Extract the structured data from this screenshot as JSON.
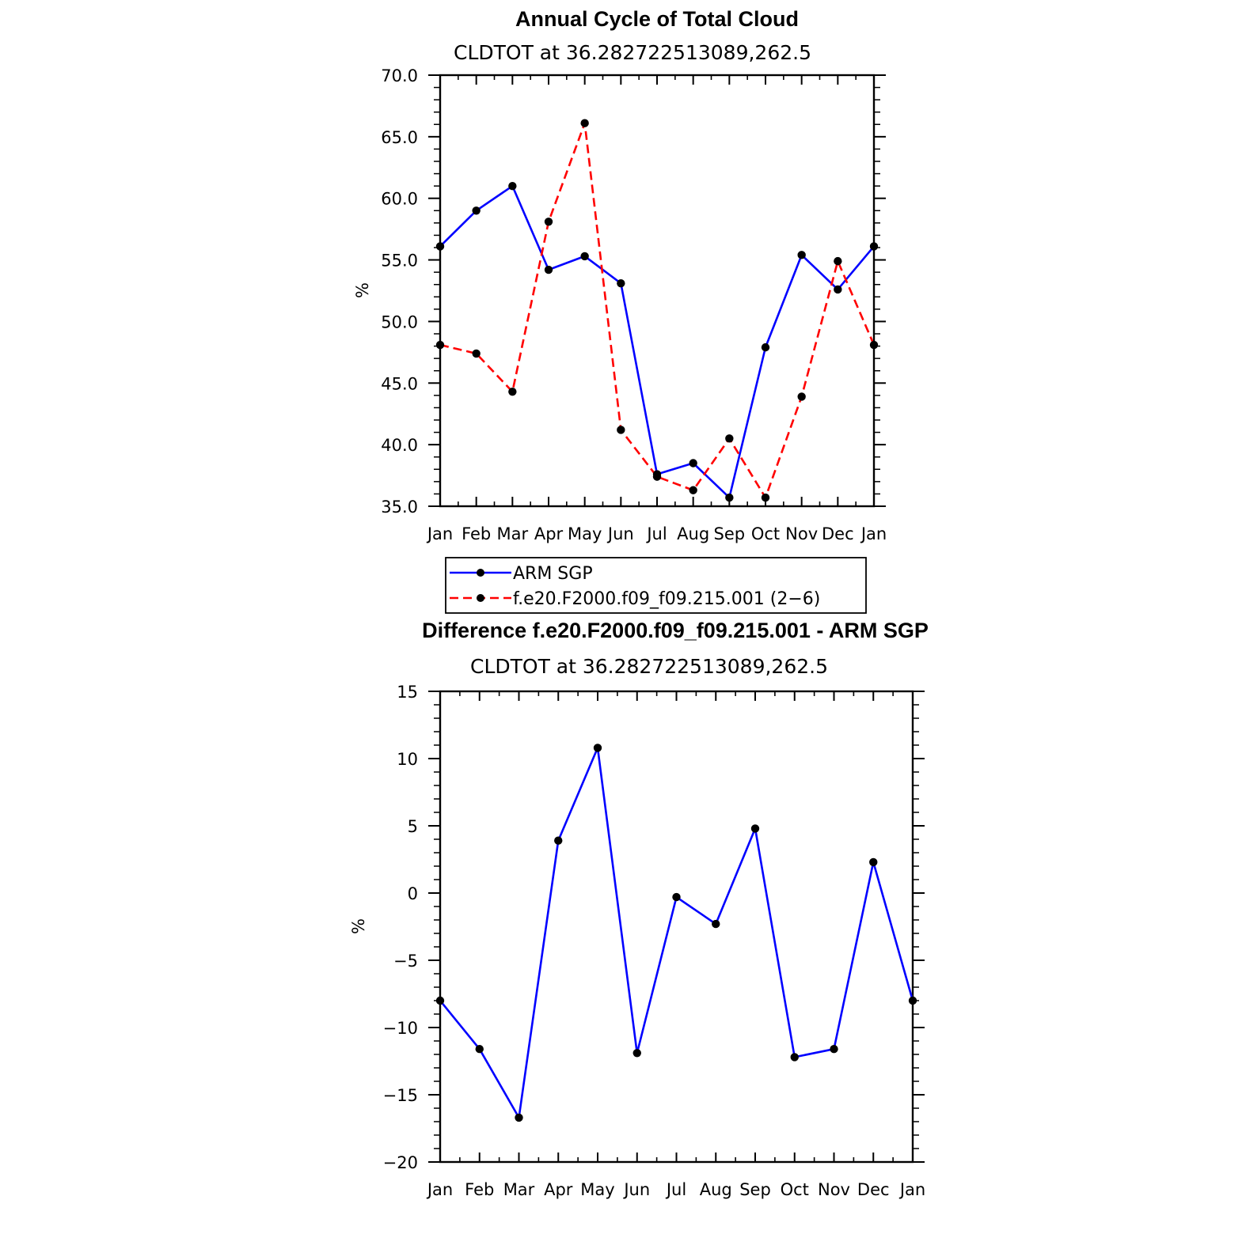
{
  "chart_data": [
    {
      "type": "line",
      "title": "Annual Cycle of Total Cloud",
      "subtitle": "CLDTOT at 36.282722513089,262.5",
      "ylabel": "%",
      "ylim": [
        35,
        70
      ],
      "yticks": [
        35,
        40,
        45,
        50,
        55,
        60,
        65,
        70
      ],
      "ytick_labels": [
        "35.0",
        "40.0",
        "45.0",
        "50.0",
        "55.0",
        "60.0",
        "65.0",
        "70.0"
      ],
      "categories": [
        "Jan",
        "Feb",
        "Mar",
        "Apr",
        "May",
        "Jun",
        "Jul",
        "Aug",
        "Sep",
        "Oct",
        "Nov",
        "Dec",
        "Jan"
      ],
      "series": [
        {
          "name": "ARM SGP",
          "color": "#0000ff",
          "dash": "solid",
          "values": [
            56.1,
            59.0,
            61.0,
            54.2,
            55.3,
            53.1,
            37.6,
            38.5,
            35.7,
            47.9,
            55.4,
            52.6,
            56.1
          ]
        },
        {
          "name": "f.e20.F2000.f09_f09.215.001 (2−6)",
          "color": "#ff0000",
          "dash": "dashed",
          "values": [
            48.1,
            47.4,
            44.3,
            58.1,
            66.1,
            41.2,
            37.4,
            36.3,
            40.5,
            35.7,
            43.9,
            54.9,
            48.1
          ]
        }
      ],
      "legend": "below"
    },
    {
      "type": "line",
      "title": "Difference f.e20.F2000.f09_f09.215.001 - ARM SGP",
      "subtitle": "CLDTOT at 36.282722513089,262.5",
      "ylabel": "%",
      "ylim": [
        -20,
        15
      ],
      "yticks": [
        -20,
        -15,
        -10,
        -5,
        0,
        5,
        10,
        15
      ],
      "ytick_labels": [
        "−20",
        "−15",
        "−10",
        "−5",
        "0",
        "5",
        "10",
        "15"
      ],
      "categories": [
        "Jan",
        "Feb",
        "Mar",
        "Apr",
        "May",
        "Jun",
        "Jul",
        "Aug",
        "Sep",
        "Oct",
        "Nov",
        "Dec",
        "Jan"
      ],
      "series": [
        {
          "color": "#0000ff",
          "dash": "solid",
          "values": [
            -8.0,
            -11.6,
            -16.7,
            3.9,
            10.8,
            -11.9,
            -0.3,
            -2.3,
            4.8,
            -12.2,
            -11.6,
            2.3,
            -8.0
          ]
        }
      ]
    }
  ]
}
